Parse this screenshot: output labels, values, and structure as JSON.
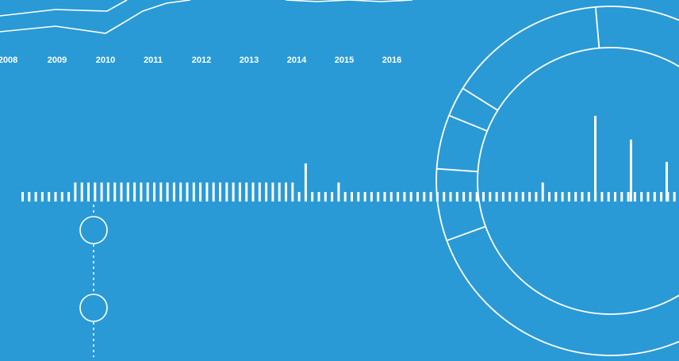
{
  "theme": {
    "background": "#2a9ad6",
    "stroke": "#ffffff"
  },
  "timeline": {
    "years": [
      "2008",
      "2009",
      "2010",
      "2011",
      "2012",
      "2013",
      "2014",
      "2015",
      "2016"
    ]
  }
}
